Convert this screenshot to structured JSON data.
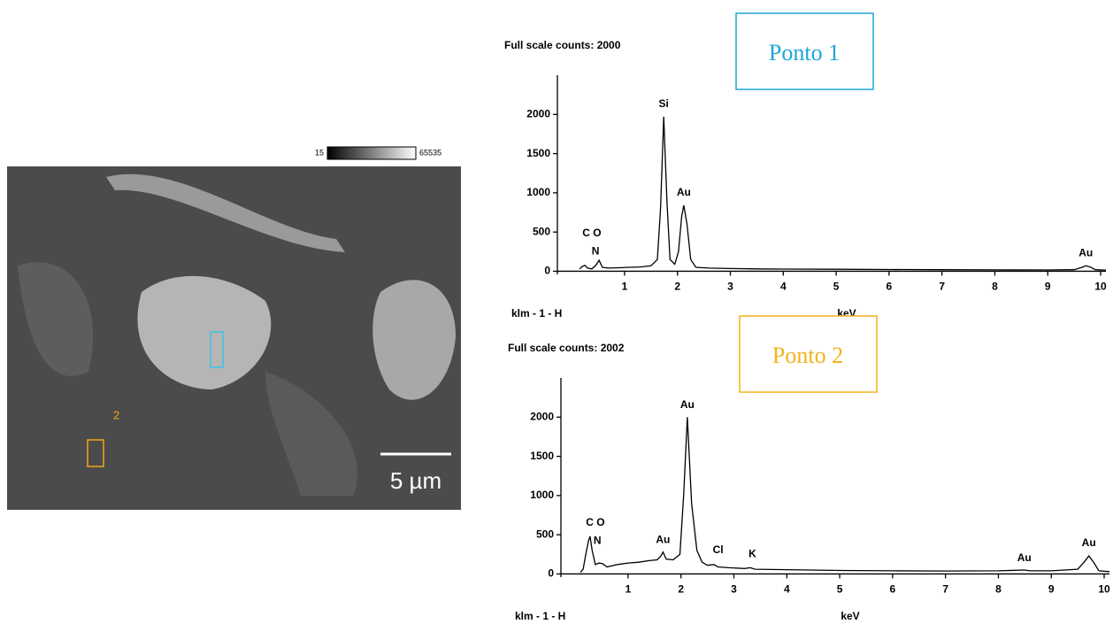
{
  "image": {
    "scale_min": "15",
    "scale_max": "65535",
    "point_label": "2",
    "scale_bar": "5 µm"
  },
  "chart_data": [
    {
      "type": "line",
      "title": "Full scale counts: 2000",
      "sample_label": "klm - 1 - H",
      "x_label": "keV",
      "label_box": {
        "text": "Ponto 1",
        "color": "#1aa7d8"
      },
      "color": "#000000",
      "xlim": [
        -0.27,
        10.1
      ],
      "ylim": [
        -40,
        2500
      ],
      "xticks": [
        1,
        2,
        3,
        4,
        5,
        6,
        7,
        8,
        9,
        10
      ],
      "yticks": [
        0,
        500,
        1000,
        1500,
        2000
      ],
      "x": [
        0.15,
        0.2,
        0.25,
        0.3,
        0.38,
        0.45,
        0.52,
        0.58,
        0.7,
        0.9,
        1.1,
        1.3,
        1.5,
        1.62,
        1.68,
        1.74,
        1.8,
        1.86,
        1.95,
        2.02,
        2.08,
        2.12,
        2.18,
        2.25,
        2.35,
        2.6,
        3,
        3.5,
        4,
        5,
        6,
        7,
        8,
        9,
        9.5,
        9.65,
        9.72,
        9.8,
        9.9,
        10.1
      ],
      "values": [
        30,
        60,
        75,
        40,
        30,
        70,
        140,
        50,
        40,
        45,
        50,
        55,
        70,
        150,
        800,
        1970,
        900,
        150,
        90,
        250,
        700,
        840,
        600,
        150,
        50,
        40,
        35,
        30,
        28,
        25,
        22,
        20,
        18,
        17,
        20,
        50,
        70,
        55,
        20,
        15
      ],
      "annotations": [
        {
          "text": "C O",
          "x": 0.38,
          "y": 480
        },
        {
          "text": "N",
          "x": 0.45,
          "y": 250
        },
        {
          "text": "Si",
          "x": 1.74,
          "y": 2130
        },
        {
          "text": "Au",
          "x": 2.12,
          "y": 1000
        },
        {
          "text": "Au",
          "x": 9.72,
          "y": 230
        }
      ]
    },
    {
      "type": "line",
      "title": "Full scale counts: 2002",
      "sample_label": "klm - 1 - H",
      "x_label": "keV",
      "label_box": {
        "text": "Ponto 2",
        "color": "#f2b21b"
      },
      "color": "#000000",
      "xlim": [
        -0.27,
        10.1
      ],
      "ylim": [
        -40,
        2500
      ],
      "xticks": [
        1,
        2,
        3,
        4,
        5,
        6,
        7,
        8,
        9,
        10
      ],
      "yticks": [
        0,
        500,
        1000,
        1500,
        2000
      ],
      "x": [
        0.1,
        0.15,
        0.2,
        0.25,
        0.28,
        0.32,
        0.38,
        0.45,
        0.52,
        0.6,
        0.8,
        1.0,
        1.2,
        1.4,
        1.55,
        1.62,
        1.66,
        1.72,
        1.85,
        1.98,
        2.05,
        2.12,
        2.2,
        2.3,
        2.4,
        2.5,
        2.62,
        2.7,
        2.9,
        3.2,
        3.31,
        3.4,
        4,
        5,
        6,
        7,
        8,
        8.49,
        8.6,
        9,
        9.5,
        9.62,
        9.71,
        9.8,
        9.9,
        10.1
      ],
      "values": [
        20,
        60,
        250,
        420,
        480,
        300,
        120,
        140,
        130,
        90,
        120,
        140,
        150,
        170,
        180,
        230,
        280,
        190,
        180,
        250,
        1000,
        2000,
        900,
        300,
        150,
        110,
        120,
        90,
        80,
        70,
        80,
        60,
        55,
        45,
        40,
        38,
        40,
        50,
        40,
        40,
        60,
        150,
        230,
        150,
        40,
        30
      ],
      "annotations": [
        {
          "text": "C O",
          "x": 0.38,
          "y": 650
        },
        {
          "text": "N",
          "x": 0.42,
          "y": 420
        },
        {
          "text": "Au",
          "x": 1.66,
          "y": 430
        },
        {
          "text": "Au",
          "x": 2.12,
          "y": 2150
        },
        {
          "text": "Cl",
          "x": 2.7,
          "y": 300
        },
        {
          "text": "K",
          "x": 3.35,
          "y": 250
        },
        {
          "text": "Au",
          "x": 8.49,
          "y": 200
        },
        {
          "text": "Au",
          "x": 9.71,
          "y": 390
        }
      ]
    }
  ]
}
